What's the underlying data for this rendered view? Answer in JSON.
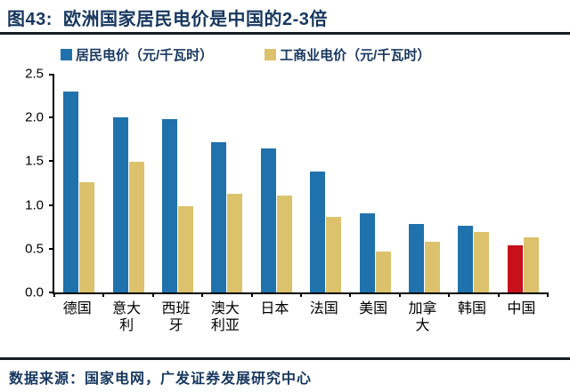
{
  "header": {
    "title": "图43:  欧洲国家居民电价是中国的2-3倍"
  },
  "chart_data": {
    "type": "bar",
    "title": "欧洲国家居民电价是中国的2-3倍",
    "categories": [
      "德国",
      "意大利",
      "西班牙",
      "澳大利亚",
      "日本",
      "法国",
      "美国",
      "加拿大",
      "韩国",
      "中国"
    ],
    "series": [
      {
        "name": "居民电价（元/千瓦时）",
        "color": "#1f72ac",
        "values": [
          2.3,
          2.0,
          1.98,
          1.72,
          1.65,
          1.38,
          0.9,
          0.78,
          0.76,
          0.54
        ]
      },
      {
        "name": "工商业电价（元/千瓦时）",
        "color": "#dcc26c",
        "values": [
          1.26,
          1.49,
          0.99,
          1.13,
          1.11,
          0.86,
          0.47,
          0.58,
          0.69,
          0.63
        ]
      }
    ],
    "highlight": {
      "category": "中国",
      "series_index": 0,
      "color": "#c8101b"
    },
    "ylim": [
      0,
      2.5
    ],
    "yticks": [
      0,
      0.5,
      1,
      1.5,
      2,
      2.5
    ],
    "grid": false,
    "legend_position": "top",
    "xlabel": "",
    "ylabel": ""
  },
  "footer": {
    "source": "数据来源：国家电网，广发证券发展研究中心"
  },
  "colors": {
    "navy_text": "#17375e",
    "rule": "#171c26",
    "axis": "#000000",
    "background": "#ffffff"
  }
}
